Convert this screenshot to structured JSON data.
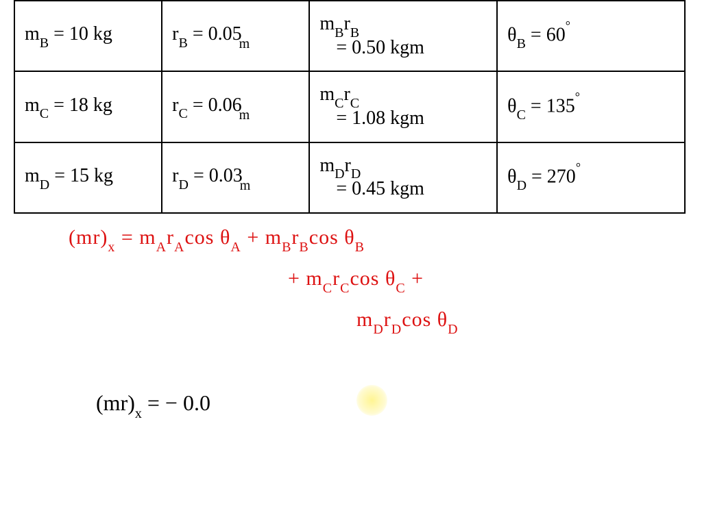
{
  "table": {
    "rows": [
      {
        "mass": {
          "var": "m",
          "sub": "B",
          "eq": " = 10 kg"
        },
        "radius": {
          "var": "r",
          "sub": "B",
          "eq": " = 0.05",
          "unit": "m"
        },
        "product": {
          "line1": "m",
          "sub1": "B",
          "mid1": "r",
          "sub2": "B",
          "line2": " = 0.50 kgm"
        },
        "angle": {
          "var": "θ",
          "sub": "B",
          "eq": " = 60",
          "deg": "°"
        }
      },
      {
        "mass": {
          "var": "m",
          "sub": "C",
          "eq": " = 18 kg"
        },
        "radius": {
          "var": "r",
          "sub": "C",
          "eq": " = 0.06",
          "unit": "m"
        },
        "product": {
          "line1": "m",
          "sub1": "C",
          "mid1": "r",
          "sub2": "C",
          "line2": " = 1.08 kgm"
        },
        "angle": {
          "var": "θ",
          "sub": "C",
          "eq": " = 135",
          "deg": "°"
        }
      },
      {
        "mass": {
          "var": "m",
          "sub": "D",
          "eq": " = 15 kg"
        },
        "radius": {
          "var": "r",
          "sub": "D",
          "eq": " = 0.03",
          "unit": "m"
        },
        "product": {
          "line1": "m",
          "sub1": "D",
          "mid1": "r",
          "sub2": "D",
          "line2": " = 0.45 kgm"
        },
        "angle": {
          "var": "θ",
          "sub": "D",
          "eq": " = 270",
          "deg": "°"
        }
      }
    ]
  },
  "equation_red": {
    "lhs_open": "(mr)",
    "lhs_sub": "x",
    "eq": "  =  ",
    "line1_terms": "m",
    "t1a": "A",
    "t1b": "r",
    "t1c": "A",
    "t1d": "cos θ",
    "t1e": "A",
    "plus1": " + m",
    "t2a": "B",
    "t2b": "r",
    "t2c": "B",
    "t2d": "cos θ",
    "t2e": "B",
    "plus2": "+ m",
    "t3a": "C",
    "t3b": "r",
    "t3c": "C",
    "t3d": "cos θ",
    "t3e": "C",
    "plus3": " +",
    "line3": "m",
    "t4a": "D",
    "t4b": "r",
    "t4c": "D",
    "t4d": "cos θ",
    "t4e": "D"
  },
  "equation_black": {
    "lhs_open": "(mr)",
    "lhs_sub": "x",
    "eq": "   =    − 0.0"
  },
  "colors": {
    "red": "#dd1111",
    "black": "#000000",
    "highlight": "#fff064",
    "background": "#ffffff"
  },
  "fonts": {
    "handwritten": "Comic Sans MS",
    "table_size": 28,
    "equation_size": 30
  }
}
